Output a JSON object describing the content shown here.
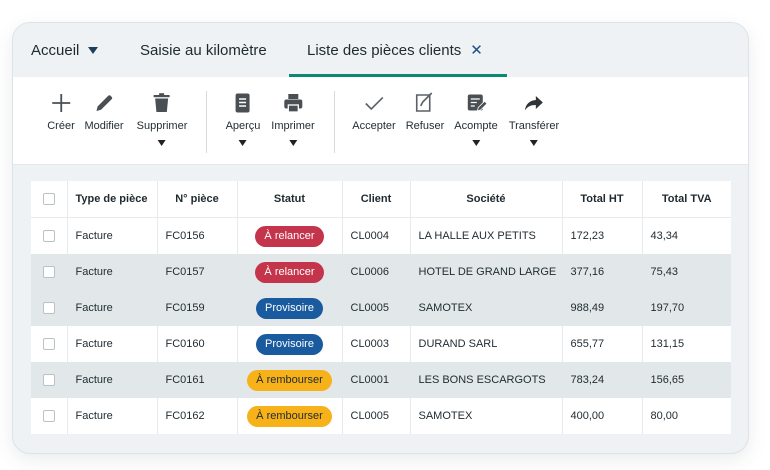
{
  "tabs": {
    "accueil": "Accueil",
    "saisie": "Saisie au kilomètre",
    "liste": "Liste des pièces clients",
    "close_glyph": "✕"
  },
  "toolbar": {
    "groups": [
      [
        {
          "label": "Créer",
          "icon": "plus-icon",
          "dropdown": false
        },
        {
          "label": "Modifier",
          "icon": "pencil-icon",
          "dropdown": false
        },
        {
          "label": "Supprimer",
          "icon": "trash-icon",
          "dropdown": true
        }
      ],
      [
        {
          "label": "Aperçu",
          "icon": "document-icon",
          "dropdown": true
        },
        {
          "label": "Imprimer",
          "icon": "printer-icon",
          "dropdown": true
        }
      ],
      [
        {
          "label": "Accepter",
          "icon": "check-icon",
          "dropdown": false
        },
        {
          "label": "Refuser",
          "icon": "refuse-icon",
          "dropdown": false
        },
        {
          "label": "Acompte",
          "icon": "invoice-edit-icon",
          "dropdown": true
        },
        {
          "label": "Transférer",
          "icon": "forward-arrow-icon",
          "dropdown": true
        }
      ]
    ]
  },
  "table": {
    "headers": [
      "Type de pièce",
      "N° pièce",
      "Statut",
      "Client",
      "Société",
      "Total HT",
      "Total TVA"
    ],
    "rows": [
      {
        "type": "Facture",
        "numero": "FC0156",
        "statut": "À relancer",
        "statut_style": "red",
        "client": "CL0004",
        "societe": "LA HALLE AUX PETITS",
        "total_ht": "172,23",
        "total_tva": "43,34",
        "shaded": false
      },
      {
        "type": "Facture",
        "numero": "FC0157",
        "statut": "À relancer",
        "statut_style": "red",
        "client": "CL0006",
        "societe": "HOTEL DE GRAND LARGE",
        "total_ht": "377,16",
        "total_tva": "75,43",
        "shaded": true
      },
      {
        "type": "Facture",
        "numero": "FC0159",
        "statut": "Provisoire",
        "statut_style": "blue",
        "client": "CL0005",
        "societe": "SAMOTEX",
        "total_ht": "988,49",
        "total_tva": "197,70",
        "shaded": true
      },
      {
        "type": "Facture",
        "numero": "FC0160",
        "statut": "Provisoire",
        "statut_style": "blue",
        "client": "CL0003",
        "societe": "DURAND SARL",
        "total_ht": "655,77",
        "total_tva": "131,15",
        "shaded": false
      },
      {
        "type": "Facture",
        "numero": "FC0161",
        "statut": "À rembourser",
        "statut_style": "yellow",
        "client": "CL0001",
        "societe": "LES BONS ESCARGOTS",
        "total_ht": "783,24",
        "total_tva": "156,65",
        "shaded": true
      },
      {
        "type": "Facture",
        "numero": "FC0162",
        "statut": "À rembourser",
        "statut_style": "yellow",
        "client": "CL0005",
        "societe": "SAMOTEX",
        "total_ht": "400,00",
        "total_tva": "80,00",
        "shaded": false
      }
    ]
  },
  "colors": {
    "accent_tab": "#0a8a6f",
    "status_red": "#c4344b",
    "status_blue": "#1a5a9e",
    "status_yellow": "#f7b21a"
  }
}
